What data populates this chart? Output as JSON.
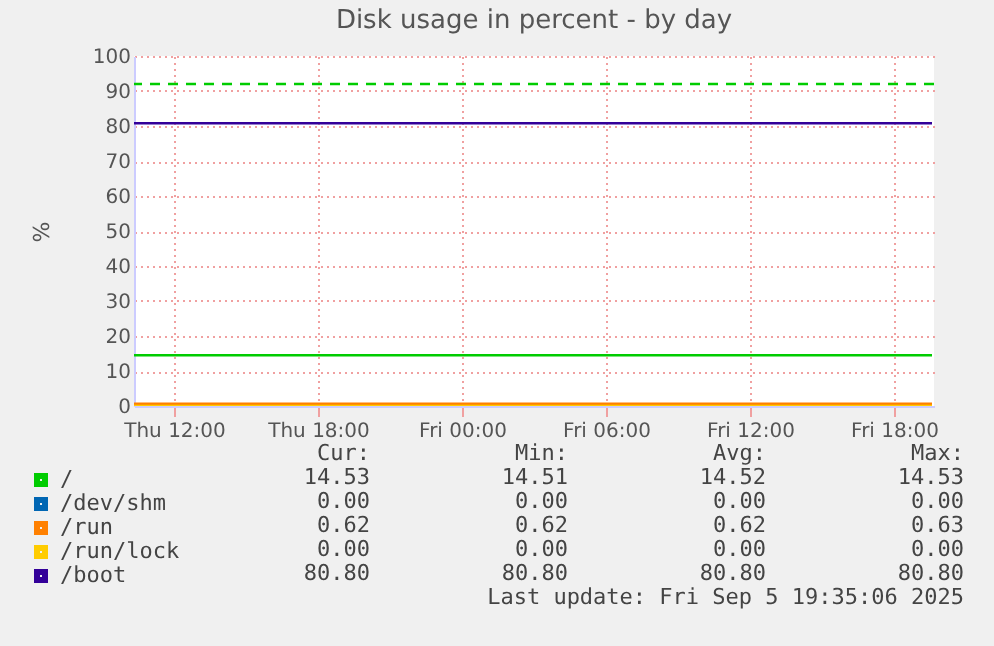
{
  "chart_data": {
    "type": "line",
    "title": "Disk usage in percent - by day",
    "ylabel": "%",
    "x": [
      "2025-09-04T10:20",
      "2025-09-05T19:35"
    ],
    "series": [
      {
        "name": "/",
        "color": "#00cc00",
        "values": [
          14.5,
          14.5
        ]
      },
      {
        "name": "/dev/shm",
        "color": "#0066b3",
        "values": [
          null,
          null
        ]
      },
      {
        "name": "/run",
        "color": "#ff8000",
        "values": [
          0.6,
          0.6
        ]
      },
      {
        "name": "/run/lock",
        "color": "#ffcc00",
        "values": [
          0,
          0
        ]
      },
      {
        "name": "/boot",
        "color": "#330099",
        "values": [
          80.8,
          80.8
        ]
      }
    ],
    "xlim": [
      "2025-09-04T10:20",
      "2025-09-05T19:40"
    ],
    "xticks": [
      {
        "value": "2025-09-04T12:00",
        "label": "Thu 12:00"
      },
      {
        "value": "2025-09-04T18:00",
        "label": "Thu 18:00"
      },
      {
        "value": "2025-09-05T00:00",
        "label": "Fri 00:00"
      },
      {
        "value": "2025-09-05T06:00",
        "label": "Fri 06:00"
      },
      {
        "value": "2025-09-05T12:00",
        "label": "Fri 12:00"
      },
      {
        "value": "2025-09-05T18:00",
        "label": "Fri 18:00"
      }
    ],
    "ylim": [
      0,
      100
    ],
    "yticks": [
      0,
      10,
      20,
      30,
      40,
      50,
      60,
      70,
      80,
      90,
      100
    ],
    "ref_lines": [
      {
        "axis": "y",
        "value": 92,
        "color": "#00cc00",
        "line_style": "dashed"
      }
    ],
    "grid": true,
    "legend": "bottom",
    "annotations": [
      "Cur:",
      "Min:",
      "Avg:",
      "Max:",
      "14.53",
      "14.51",
      "14.52",
      "14.53",
      "0.00",
      "0.00",
      "0.00",
      "0.00",
      "0.62",
      "0.62",
      "0.62",
      "0.63",
      "0.00",
      "0.00",
      "0.00",
      "0.00",
      "80.80",
      "80.80",
      "80.80",
      "80.80",
      "Last update: Fri Sep  5 19:35:06 2025"
    ]
  }
}
